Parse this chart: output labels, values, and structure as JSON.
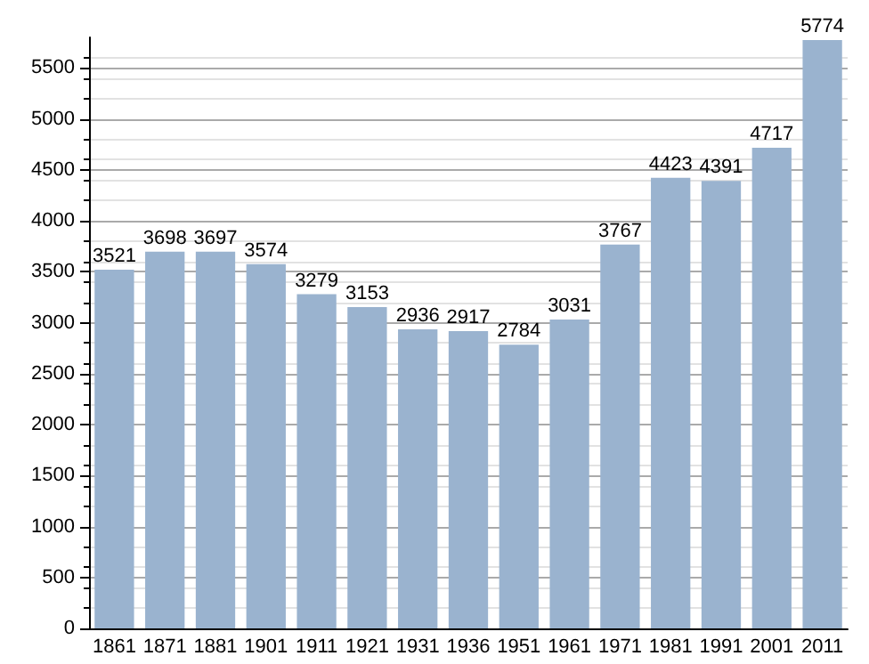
{
  "chart_data": {
    "type": "bar",
    "categories": [
      "1861",
      "1871",
      "1881",
      "1901",
      "1911",
      "1921",
      "1931",
      "1936",
      "1951",
      "1961",
      "1971",
      "1981",
      "1991",
      "2001",
      "2011"
    ],
    "values": [
      3521,
      3698,
      3697,
      3574,
      3279,
      3153,
      2936,
      2917,
      2784,
      3031,
      3767,
      4423,
      4391,
      4717,
      5774
    ],
    "color": "#9ab3cf",
    "data_labels": true,
    "ylim": [
      0,
      5800
    ],
    "yticks": [
      0,
      500,
      1000,
      1500,
      2000,
      2500,
      3000,
      3500,
      4000,
      4500,
      5000,
      5500
    ],
    "grid": "y"
  }
}
